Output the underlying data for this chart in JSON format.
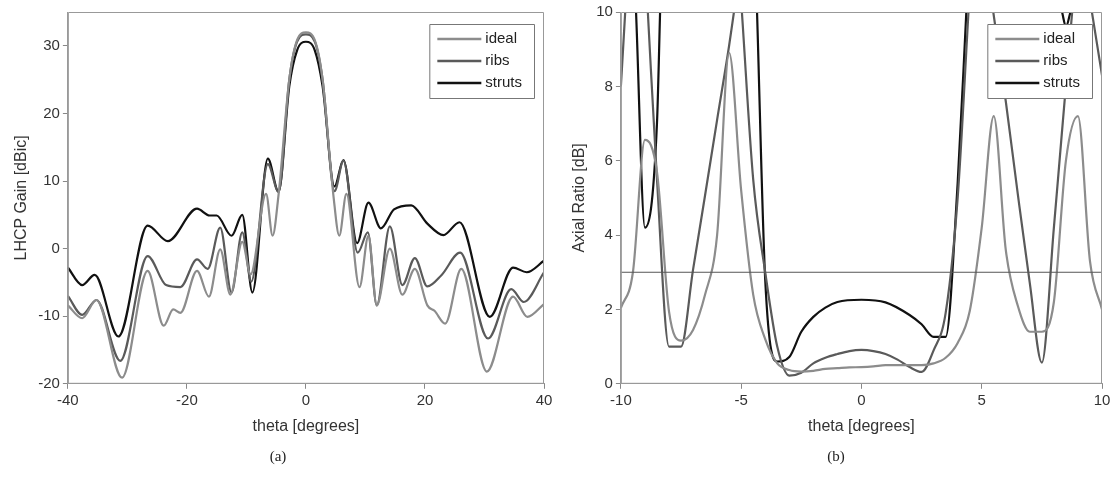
{
  "chart_data": [
    {
      "type": "line",
      "xlabel": "theta [degrees]",
      "ylabel": "LHCP Gain [dBic]",
      "xlim": [
        -40,
        40
      ],
      "xticks": [
        -40,
        -20,
        0,
        20,
        40
      ],
      "ylim": [
        -20,
        35
      ],
      "yticks": [
        -20,
        -10,
        0,
        10,
        20,
        30
      ],
      "grid": false,
      "legend": "top right",
      "annotations": [
        "(a)"
      ],
      "series": [
        {
          "name": "ideal",
          "color": "#8c8c8c",
          "x": [
            -40,
            -37.6,
            -35.2,
            -30.9,
            -26.6,
            -23.9,
            -22.3,
            -21.1,
            -18.3,
            -16.3,
            -14.4,
            -12.7,
            -10.7,
            -9.3,
            -6.7,
            -5.6,
            -4.6,
            -2.8,
            -1.5,
            0,
            1.5,
            2.8,
            4.6,
            5.6,
            6.8,
            9,
            10.5,
            11.9,
            14.1,
            16.2,
            18.3,
            20.4,
            21.6,
            23.4,
            26.1,
            30.4,
            34.8,
            37.2,
            40
          ],
          "values": [
            -8.4,
            -10.3,
            -7.6,
            -19.1,
            -3.3,
            -11.4,
            -9,
            -9.5,
            -3.3,
            -7.1,
            -0.1,
            -6.8,
            1,
            -3.8,
            8.1,
            1.9,
            8,
            25,
            30.8,
            32,
            30.8,
            25,
            8,
            1.9,
            8.1,
            -5.7,
            1.9,
            -8.4,
            0,
            -6.8,
            -3,
            -8.4,
            -9.2,
            -11.1,
            -3,
            -18.2,
            -7.1,
            -10.1,
            -8.2
          ]
        },
        {
          "name": "ribs",
          "color": "#5a5a5a",
          "x": [
            -40,
            -37.6,
            -35.2,
            -31.2,
            -26.6,
            -23.5,
            -21.1,
            -18.3,
            -16.5,
            -14.4,
            -12.5,
            -10.7,
            -9.2,
            -6.4,
            -4.6,
            -2.8,
            -1.5,
            0,
            1.5,
            2.8,
            4.8,
            6.3,
            8.7,
            10.4,
            11.9,
            14.1,
            16.2,
            18.3,
            20.4,
            22.8,
            25.9,
            30.6,
            34.5,
            36.6,
            40
          ],
          "values": [
            -7,
            -9.8,
            -7.6,
            -16.6,
            -1.1,
            -5.4,
            -5.7,
            -1.6,
            -3,
            3.1,
            -6.5,
            2.4,
            -4.9,
            12.5,
            8.4,
            25,
            30.6,
            31.7,
            30.6,
            25,
            8.5,
            13,
            -0.6,
            2.4,
            -8.4,
            3.3,
            -5.4,
            -1.4,
            -5.6,
            -3.9,
            -0.6,
            -13.3,
            -6,
            -7.9,
            -3.5
          ]
        },
        {
          "name": "struts",
          "color": "#111111",
          "x": [
            -40,
            -37.6,
            -35.5,
            -31.5,
            -26.6,
            -23.2,
            -18.3,
            -16.2,
            -15,
            -12.5,
            -10.7,
            -9,
            -6.4,
            -4.6,
            -2.8,
            -1.5,
            0,
            1.5,
            2.8,
            4.8,
            6.3,
            8.6,
            10.5,
            12.6,
            14.8,
            17.7,
            20.4,
            23.1,
            25.8,
            30.9,
            34.8,
            37.1,
            40
          ],
          "values": [
            -2.8,
            -5.4,
            -3.9,
            -13,
            3.4,
            1.1,
            5.9,
            4.9,
            4.9,
            1.9,
            5,
            -6.5,
            13.3,
            8.4,
            24,
            29.3,
            30.6,
            29.3,
            24,
            9.2,
            13.1,
            0.8,
            6.8,
            3,
            5.8,
            6.4,
            3.7,
            2,
            3.9,
            -10.1,
            -2.8,
            -3.5,
            -1.8
          ]
        }
      ]
    },
    {
      "type": "line",
      "xlabel": "theta [degrees]",
      "ylabel": "Axial Ratio [dB]",
      "xlim": [
        -10,
        10
      ],
      "xticks": [
        -10,
        -5,
        0,
        5,
        10
      ],
      "ylim": [
        0,
        10
      ],
      "yticks": [
        0,
        2,
        4,
        6,
        8,
        10
      ],
      "grid": false,
      "legend": "top right",
      "annotations": [
        "(b)"
      ],
      "ref_lines": [
        {
          "axis": "y",
          "value": 3,
          "color": "#555555"
        }
      ],
      "series": [
        {
          "name": "ideal",
          "color": "#8c8c8c",
          "x": [
            -10,
            -9.5,
            -9,
            -8.5,
            -8,
            -7.5,
            -7,
            -6.5,
            -6,
            -5.5,
            -5,
            -4.5,
            -4,
            -3.5,
            -3,
            -2.5,
            -2,
            -1.5,
            -1,
            -0.5,
            0,
            0.5,
            1,
            1.5,
            2,
            2.5,
            3,
            3.5,
            4,
            4.5,
            5,
            5.5,
            6,
            6.5,
            7,
            7.5,
            8,
            8.5,
            9,
            9.5,
            10
          ],
          "values": [
            2.04,
            3,
            6.56,
            5.7,
            1.95,
            1.16,
            1.45,
            2.4,
            4,
            8.9,
            5.2,
            2.4,
            1.2,
            0.55,
            0.37,
            0.33,
            0.35,
            0.4,
            0.42,
            0.44,
            0.45,
            0.47,
            0.5,
            0.5,
            0.5,
            0.5,
            0.55,
            0.7,
            1.1,
            1.95,
            4.2,
            7.2,
            3.6,
            2.1,
            1.4,
            1.4,
            2.2,
            6,
            7.2,
            3.3,
            2
          ]
        },
        {
          "name": "ribs",
          "color": "#5a5a5a",
          "x": [
            -10,
            -9.82,
            -9.5,
            -8.88,
            -8.5,
            -8,
            -7.5,
            -7,
            -6.5,
            -6,
            -5.5,
            -5.3,
            -5.1,
            -4.97,
            -4.5,
            -4,
            -3.5,
            -3,
            -2.5,
            -2,
            -1.5,
            -1,
            -0.5,
            0,
            0.5,
            1,
            1.5,
            2,
            2.5,
            3,
            3.5,
            4,
            4.45,
            5,
            5.48,
            6,
            6.5,
            7,
            7.5,
            8,
            8.3,
            8.76,
            9.2,
            9.58,
            10
          ],
          "values": [
            8,
            10,
            null,
            10,
            5.5,
            1,
            1,
            3.07,
            5.07,
            7.1,
            9.1,
            10,
            null,
            10,
            5.5,
            3,
            1,
            0.22,
            0.3,
            0.55,
            0.7,
            0.8,
            0.88,
            0.91,
            0.88,
            0.8,
            0.65,
            0.45,
            0.32,
            0.9,
            1.9,
            5,
            10,
            null,
            10,
            7.6,
            5.1,
            2.7,
            0.57,
            4.2,
            6.5,
            10,
            null,
            10,
            8.3
          ]
        },
        {
          "name": "struts",
          "color": "#111111",
          "x": [
            -9.37,
            -9,
            -8.5,
            -8.37,
            -6,
            -4.34,
            -4,
            -3.5,
            -3,
            -2.5,
            -2,
            -1.5,
            -1,
            0,
            1,
            2,
            2.5,
            3,
            3.5,
            4,
            4.36,
            6,
            8.34,
            8.5,
            8.69
          ],
          "values": [
            10,
            4.2,
            7,
            10,
            null,
            10,
            2.8,
            0.6,
            0.72,
            1.4,
            1.8,
            2.05,
            2.2,
            2.26,
            2.19,
            1.85,
            1.6,
            1.26,
            1.26,
            5.4,
            10,
            null,
            10,
            9.6,
            10
          ]
        }
      ]
    }
  ]
}
